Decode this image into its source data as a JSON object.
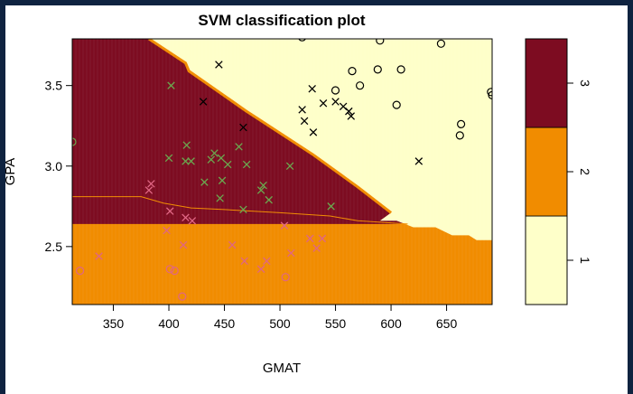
{
  "chart_data": {
    "type": "scatter",
    "title": "SVM classification plot",
    "xlabel": "GMAT",
    "ylabel": "GPA",
    "xlim": [
      313,
      691
    ],
    "ylim": [
      2.14,
      3.79
    ],
    "x_ticks": [
      350,
      400,
      450,
      500,
      550,
      600,
      650
    ],
    "y_ticks": [
      2.5,
      3.0,
      3.5
    ],
    "y_tick_labels": [
      "2.5",
      "3.0",
      "3.5"
    ],
    "regions": [
      {
        "class": "3",
        "color": "#7d0c21",
        "polygon": [
          [
            313,
            3.79
          ],
          [
            382,
            3.79
          ],
          [
            415,
            3.64
          ],
          [
            418,
            3.59
          ],
          [
            470,
            3.34
          ],
          [
            530,
            3.07
          ],
          [
            570,
            2.87
          ],
          [
            600,
            2.71
          ],
          [
            615,
            2.64
          ],
          [
            313,
            2.64
          ]
        ]
      },
      {
        "class": "1",
        "color": "#feffc9",
        "polygon": [
          [
            382,
            3.79
          ],
          [
            691,
            3.79
          ],
          [
            691,
            2.54
          ],
          [
            677,
            2.54
          ],
          [
            670,
            2.57
          ],
          [
            655,
            2.57
          ],
          [
            640,
            2.62
          ],
          [
            620,
            2.62
          ],
          [
            605,
            2.66
          ],
          [
            590,
            2.66
          ],
          [
            600,
            2.71
          ],
          [
            570,
            2.87
          ],
          [
            530,
            3.07
          ],
          [
            470,
            3.34
          ],
          [
            418,
            3.59
          ],
          [
            415,
            3.64
          ]
        ]
      }
    ],
    "background_region": {
      "class": "2",
      "color": "#f18c00"
    },
    "lower_boundary": [
      [
        313,
        2.81
      ],
      [
        375,
        2.81
      ],
      [
        395,
        2.77
      ],
      [
        420,
        2.74
      ],
      [
        450,
        2.73
      ],
      [
        500,
        2.71
      ],
      [
        545,
        2.69
      ],
      [
        570,
        2.66
      ],
      [
        615,
        2.64
      ]
    ],
    "legend": {
      "ylim": [
        0.5,
        3.5
      ],
      "ticks": [
        1,
        2,
        3
      ],
      "tick_labels": [
        "1",
        "2",
        "3"
      ],
      "colors": [
        "#feffc9",
        "#f18c00",
        "#7d0c21"
      ]
    },
    "points": [
      {
        "x": 520,
        "y": 3.8,
        "marker": "o",
        "color": "#000000"
      },
      {
        "x": 590,
        "y": 3.78,
        "marker": "o",
        "color": "#000000"
      },
      {
        "x": 645,
        "y": 3.76,
        "marker": "o",
        "color": "#000000"
      },
      {
        "x": 565,
        "y": 3.59,
        "marker": "o",
        "color": "#000000"
      },
      {
        "x": 588,
        "y": 3.6,
        "marker": "o",
        "color": "#000000"
      },
      {
        "x": 609,
        "y": 3.6,
        "marker": "o",
        "color": "#000000"
      },
      {
        "x": 572,
        "y": 3.5,
        "marker": "o",
        "color": "#000000"
      },
      {
        "x": 550,
        "y": 3.47,
        "marker": "o",
        "color": "#000000"
      },
      {
        "x": 605,
        "y": 3.38,
        "marker": "o",
        "color": "#000000"
      },
      {
        "x": 690,
        "y": 3.46,
        "marker": "o",
        "color": "#000000"
      },
      {
        "x": 691,
        "y": 3.44,
        "marker": "o",
        "color": "#000000"
      },
      {
        "x": 663,
        "y": 3.26,
        "marker": "o",
        "color": "#000000"
      },
      {
        "x": 662,
        "y": 3.19,
        "marker": "o",
        "color": "#000000"
      },
      {
        "x": 445,
        "y": 3.63,
        "marker": "x",
        "color": "#000000"
      },
      {
        "x": 529,
        "y": 3.48,
        "marker": "x",
        "color": "#000000"
      },
      {
        "x": 431,
        "y": 3.4,
        "marker": "x",
        "color": "#000000"
      },
      {
        "x": 539,
        "y": 3.39,
        "marker": "x",
        "color": "#000000"
      },
      {
        "x": 550,
        "y": 3.4,
        "marker": "x",
        "color": "#000000"
      },
      {
        "x": 557,
        "y": 3.37,
        "marker": "x",
        "color": "#000000"
      },
      {
        "x": 562,
        "y": 3.34,
        "marker": "x",
        "color": "#000000"
      },
      {
        "x": 564,
        "y": 3.31,
        "marker": "x",
        "color": "#000000"
      },
      {
        "x": 520,
        "y": 3.35,
        "marker": "x",
        "color": "#000000"
      },
      {
        "x": 522,
        "y": 3.28,
        "marker": "x",
        "color": "#000000"
      },
      {
        "x": 530,
        "y": 3.21,
        "marker": "x",
        "color": "#000000"
      },
      {
        "x": 467,
        "y": 3.24,
        "marker": "x",
        "color": "#000000"
      },
      {
        "x": 625,
        "y": 3.03,
        "marker": "x",
        "color": "#000000"
      },
      {
        "x": 313,
        "y": 3.15,
        "marker": "o",
        "color": "#6aa84f"
      },
      {
        "x": 402,
        "y": 3.5,
        "marker": "x",
        "color": "#6aa84f"
      },
      {
        "x": 416,
        "y": 3.13,
        "marker": "x",
        "color": "#6aa84f"
      },
      {
        "x": 463,
        "y": 3.12,
        "marker": "x",
        "color": "#6aa84f"
      },
      {
        "x": 400,
        "y": 3.05,
        "marker": "x",
        "color": "#6aa84f"
      },
      {
        "x": 415,
        "y": 3.03,
        "marker": "x",
        "color": "#6aa84f"
      },
      {
        "x": 420,
        "y": 3.03,
        "marker": "x",
        "color": "#6aa84f"
      },
      {
        "x": 438,
        "y": 3.04,
        "marker": "x",
        "color": "#6aa84f"
      },
      {
        "x": 441,
        "y": 3.08,
        "marker": "x",
        "color": "#6aa84f"
      },
      {
        "x": 447,
        "y": 3.05,
        "marker": "x",
        "color": "#6aa84f"
      },
      {
        "x": 453,
        "y": 3.01,
        "marker": "x",
        "color": "#6aa84f"
      },
      {
        "x": 470,
        "y": 3.01,
        "marker": "x",
        "color": "#6aa84f"
      },
      {
        "x": 509,
        "y": 3.0,
        "marker": "x",
        "color": "#6aa84f"
      },
      {
        "x": 432,
        "y": 2.9,
        "marker": "x",
        "color": "#6aa84f"
      },
      {
        "x": 448,
        "y": 2.91,
        "marker": "x",
        "color": "#6aa84f"
      },
      {
        "x": 483,
        "y": 2.85,
        "marker": "x",
        "color": "#6aa84f"
      },
      {
        "x": 485,
        "y": 2.88,
        "marker": "x",
        "color": "#6aa84f"
      },
      {
        "x": 446,
        "y": 2.8,
        "marker": "x",
        "color": "#6aa84f"
      },
      {
        "x": 490,
        "y": 2.79,
        "marker": "x",
        "color": "#6aa84f"
      },
      {
        "x": 467,
        "y": 2.73,
        "marker": "x",
        "color": "#6aa84f"
      },
      {
        "x": 546,
        "y": 2.75,
        "marker": "x",
        "color": "#6aa84f"
      },
      {
        "x": 384,
        "y": 2.89,
        "marker": "x",
        "color": "#e06684"
      },
      {
        "x": 382,
        "y": 2.85,
        "marker": "x",
        "color": "#e06684"
      },
      {
        "x": 401,
        "y": 2.72,
        "marker": "x",
        "color": "#e06684"
      },
      {
        "x": 415,
        "y": 2.68,
        "marker": "x",
        "color": "#e06684"
      },
      {
        "x": 421,
        "y": 2.66,
        "marker": "x",
        "color": "#e06684"
      },
      {
        "x": 398,
        "y": 2.6,
        "marker": "x",
        "color": "#e06684"
      },
      {
        "x": 504,
        "y": 2.63,
        "marker": "x",
        "color": "#e06684"
      },
      {
        "x": 527,
        "y": 2.55,
        "marker": "x",
        "color": "#e06684"
      },
      {
        "x": 538,
        "y": 2.55,
        "marker": "x",
        "color": "#e06684"
      },
      {
        "x": 413,
        "y": 2.51,
        "marker": "x",
        "color": "#e06684"
      },
      {
        "x": 457,
        "y": 2.51,
        "marker": "x",
        "color": "#e06684"
      },
      {
        "x": 533,
        "y": 2.49,
        "marker": "x",
        "color": "#e06684"
      },
      {
        "x": 510,
        "y": 2.46,
        "marker": "x",
        "color": "#e06684"
      },
      {
        "x": 337,
        "y": 2.44,
        "marker": "x",
        "color": "#e06684"
      },
      {
        "x": 468,
        "y": 2.41,
        "marker": "x",
        "color": "#e06684"
      },
      {
        "x": 488,
        "y": 2.41,
        "marker": "x",
        "color": "#e06684"
      },
      {
        "x": 483,
        "y": 2.36,
        "marker": "x",
        "color": "#e06684"
      },
      {
        "x": 320,
        "y": 2.35,
        "marker": "o",
        "color": "#e06684"
      },
      {
        "x": 401,
        "y": 2.36,
        "marker": "o",
        "color": "#e06684"
      },
      {
        "x": 405,
        "y": 2.35,
        "marker": "o",
        "color": "#e06684"
      },
      {
        "x": 505,
        "y": 2.31,
        "marker": "o",
        "color": "#e06684"
      },
      {
        "x": 412,
        "y": 2.19,
        "marker": "o",
        "color": "#e06684"
      }
    ]
  }
}
